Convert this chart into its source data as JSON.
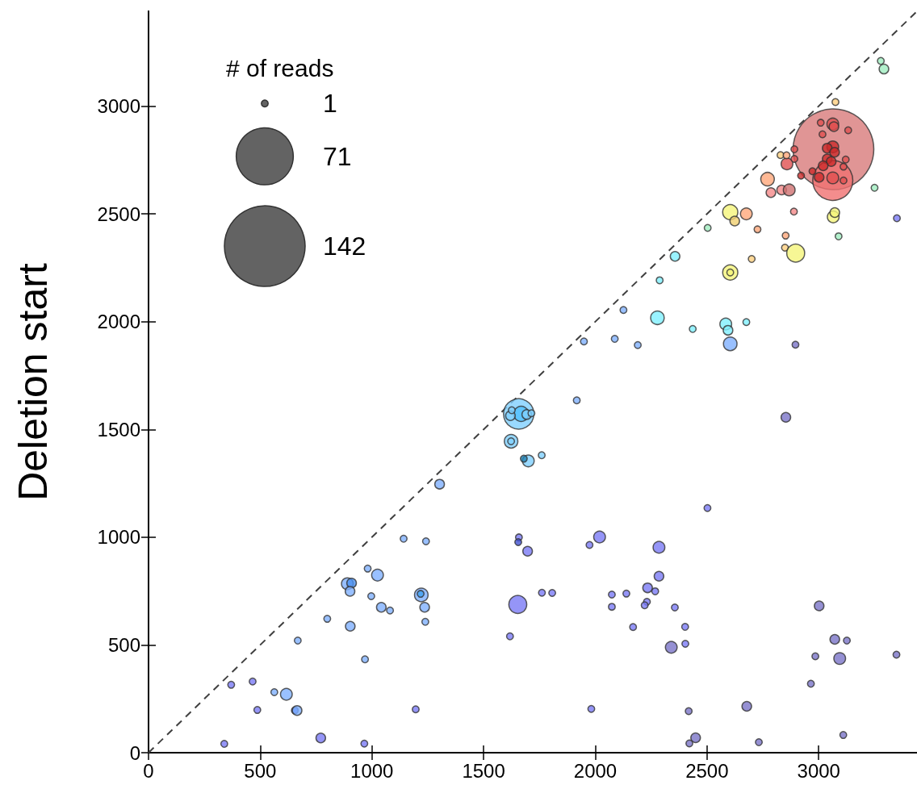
{
  "chart_data": {
    "type": "bubble",
    "ylabel": "Deletion start",
    "legend_title": "# of reads",
    "size_legend": [
      1,
      71,
      142
    ],
    "grid": false,
    "xlim": [
      0,
      3440
    ],
    "ylim": [
      0,
      3440
    ],
    "xticks": [
      0,
      500,
      1000,
      1500,
      2000,
      2500,
      3000
    ],
    "yticks": [
      0,
      500,
      1000,
      1500,
      2000,
      2500,
      3000
    ],
    "series": [
      {
        "type": "bubble",
        "x": [
          339,
          370,
          466,
          487,
          563,
          617,
          655,
          665,
          668,
          771,
          800,
          890,
          909,
          902,
          903,
          966,
          969,
          981,
          1025,
          997,
          1042,
          1081,
          1142,
          1196,
          1221,
          1218,
          1236,
          1239,
          1242,
          1303,
          1657,
          1668,
          1693,
          1714,
          1620,
          1626,
          1623,
          1623,
          1700,
          1680,
          1760,
          1658,
          1655,
          1697,
          1653,
          1618,
          1761,
          1807,
          1974,
          2019,
          1982,
          2074,
          2074,
          2139,
          2169,
          2234,
          2268,
          2231,
          2221,
          2285,
          2285,
          2356,
          2340,
          2402,
          2403,
          2502,
          2418,
          2449,
          2421,
          2678,
          2732,
          3002,
          2985,
          3072,
          3126,
          3094,
          2965,
          3110,
          3348,
          2853,
          2896,
          3350,
          2357,
          2288,
          2126,
          2278,
          2436,
          1949,
          2087,
          2190,
          1917,
          2584,
          2594,
          2604,
          2676,
          2604,
          2604,
          2700,
          3075,
          3066,
          3063,
          3009,
          3063,
          3068,
          3132,
          3017,
          3063,
          3038,
          3071,
          3038,
          3056,
          3020,
          3121,
          2972,
          3002,
          3111,
          3063,
          3111,
          2921,
          2858,
          2829,
          2856,
          2891,
          2891,
          2771,
          2786,
          2834,
          2868,
          3250,
          2889,
          3065,
          3072,
          2604,
          2624,
          2676,
          2726,
          2852,
          2849,
          2897,
          3089,
          2503,
          3278,
          3292
        ],
        "values": [
          41,
          315,
          330,
          198,
          281,
          271,
          196,
          196,
          520,
          68,
          621,
          784,
          787,
          749,
          587,
          42,
          433,
          854,
          824,
          726,
          675,
          660,
          993,
          201,
          732,
          737,
          675,
          607,
          981,
          1246,
          1572,
          1572,
          1569,
          1575,
          1564,
          1589,
          1445,
          1445,
          1354,
          1364,
          1380,
          999,
          977,
          935,
          688,
          540,
          742,
          741,
          964,
          1001,
          203,
          734,
          677,
          738,
          583,
          765,
          749,
          700,
          684,
          953,
          819,
          674,
          489,
          584,
          505,
          1135,
          193,
          69,
          43,
          215,
          49,
          681,
          447,
          526,
          520,
          437,
          320,
          82,
          455,
          1556,
          1893,
          2480,
          2303,
          2192,
          2054,
          2018,
          1966,
          1908,
          1920,
          1891,
          1635,
          1989,
          1960,
          1897,
          1998,
          2228,
          2228,
          2291,
          3019,
          2800,
          2655,
          2923,
          2917,
          2905,
          2888,
          2869,
          2811,
          2805,
          2786,
          2755,
          2743,
          2723,
          2752,
          2698,
          2670,
          2719,
          2667,
          2655,
          2677,
          2732,
          2773,
          2772,
          2800,
          2755,
          2661,
          2599,
          2611,
          2611,
          2621,
          2511,
          2486,
          2506,
          2508,
          2467,
          2500,
          2428,
          2399,
          2343,
          2318,
          2396,
          2435,
          3210,
          3172
        ],
        "sizes": [
          1,
          1,
          1,
          1,
          1,
          3,
          1,
          2,
          1,
          2,
          1,
          3,
          2,
          2,
          2,
          1,
          1,
          1,
          3,
          1,
          2,
          1,
          1,
          1,
          4,
          1,
          2,
          1,
          1,
          2,
          20,
          5,
          2,
          1,
          2,
          1,
          4,
          1,
          3,
          1,
          1,
          1,
          1,
          2,
          7,
          1,
          1,
          1,
          1,
          3,
          1,
          1,
          1,
          1,
          1,
          2,
          1,
          1,
          1,
          3,
          2,
          1,
          3,
          1,
          1,
          1,
          1,
          2,
          1,
          2,
          1,
          2,
          1,
          2,
          1,
          3,
          1,
          1,
          1,
          2,
          1,
          1,
          2,
          1,
          1,
          4,
          1,
          1,
          1,
          1,
          1,
          3,
          2,
          4,
          1,
          5,
          1,
          1,
          1,
          142,
          35,
          1,
          3,
          2,
          1,
          1,
          3,
          2,
          2,
          2,
          2,
          2,
          1,
          1,
          2,
          1,
          3,
          1,
          1,
          3,
          1,
          1,
          1,
          1,
          4,
          2,
          2,
          3,
          1,
          1,
          3,
          2,
          5,
          2,
          3,
          1,
          1,
          1,
          7,
          1,
          1,
          1,
          2
        ],
        "colors": [
          "#7b7bf5",
          "#7b7bf5",
          "#7b7bf5",
          "#7b7bf5",
          "#7fb0ff",
          "#7fb0ff",
          "#4060f0",
          "#7fb0ff",
          "#7fb0ff",
          "#7b7bf5",
          "#7fb0ff",
          "#7fb0ff",
          "#4a90f0",
          "#7fb0ff",
          "#7fb0ff",
          "#7b7bf5",
          "#7fb0ff",
          "#7fb0ff",
          "#7fb0ff",
          "#7fb0ff",
          "#7fb0ff",
          "#7fb0ff",
          "#7fb0ff",
          "#7b7bf5",
          "#7fb0ff",
          "#3f9ff0",
          "#7fb0ff",
          "#7fb0ff",
          "#7fb0ff",
          "#7fb0ff",
          "#7fd0ff",
          "#4fbfff",
          "#7fd0ff",
          "#7fd0ff",
          "#7fd0ff",
          "#7fd0ff",
          "#7fd0ff",
          "#7fd0ff",
          "#7fd0ff",
          "#2080b0",
          "#7fd0ff",
          "#7b7bf5",
          "#4050d0",
          "#7b7bf5",
          "#7b7bf5",
          "#7b7bf5",
          "#7b7bf5",
          "#7b7bf5",
          "#7b7bf5",
          "#7b7bf5",
          "#7b7bf5",
          "#7b7bf5",
          "#7b7bf5",
          "#7b7bf5",
          "#7b7bf5",
          "#7b7bf5",
          "#7b7bf5",
          "#7b7bf5",
          "#7b7bf5",
          "#7b7bf5",
          "#7b7bf5",
          "#7b7bf5",
          "#7a74c8",
          "#7b7bf5",
          "#7b7bf5",
          "#7b7bf5",
          "#7a74c8",
          "#7a74c8",
          "#7a74c8",
          "#7a74c8",
          "#7a74c8",
          "#7a74c8",
          "#7a74c8",
          "#7a74c8",
          "#7a74c8",
          "#7a74c8",
          "#7a74c8",
          "#7a74c8",
          "#7a74c8",
          "#7a74c8",
          "#7a74c8",
          "#7b7bf5",
          "#7ff0ff",
          "#7ff0ff",
          "#7fb0ff",
          "#7ff0ff",
          "#7ff0ff",
          "#7fb0ff",
          "#7fb0ff",
          "#7fb0ff",
          "#7fb0ff",
          "#7ff0ff",
          "#7ff0ff",
          "#7fb0ff",
          "#7ff0ff",
          "#f5f57a",
          "#f5f57a",
          "#ffd080",
          "#ffd080",
          "#d87a7a",
          "#f07070",
          "#e05050",
          "#e05050",
          "#e05050",
          "#e05050",
          "#e05050",
          "#cc2b2b",
          "#cc2b2b",
          "#cc2b2b",
          "#cc2b2b",
          "#cc2b2b",
          "#cc2b2b",
          "#e05050",
          "#cc2b2b",
          "#cc2b2b",
          "#e05050",
          "#e05050",
          "#e05050",
          "#cc2b2b",
          "#e05050",
          "#ffd080",
          "#ffa87a",
          "#e05050",
          "#e05050",
          "#ffa87a",
          "#f58a8a",
          "#f58a8a",
          "#d07070",
          "#a0eec0",
          "#f58a8a",
          "#f5f57a",
          "#f5f57a",
          "#f5f57a",
          "#f0d070",
          "#ffa87a",
          "#ffa87a",
          "#ffa87a",
          "#ffd080",
          "#f5f57a",
          "#a0eec0",
          "#a0eec0",
          "#a0eec0",
          "#a0eec0"
        ]
      },
      {
        "type": "line",
        "x": [
          0,
          3440
        ],
        "values": [
          0,
          3440
        ],
        "color": "#404040",
        "line_style": "dashed",
        "marker": "none"
      }
    ]
  }
}
